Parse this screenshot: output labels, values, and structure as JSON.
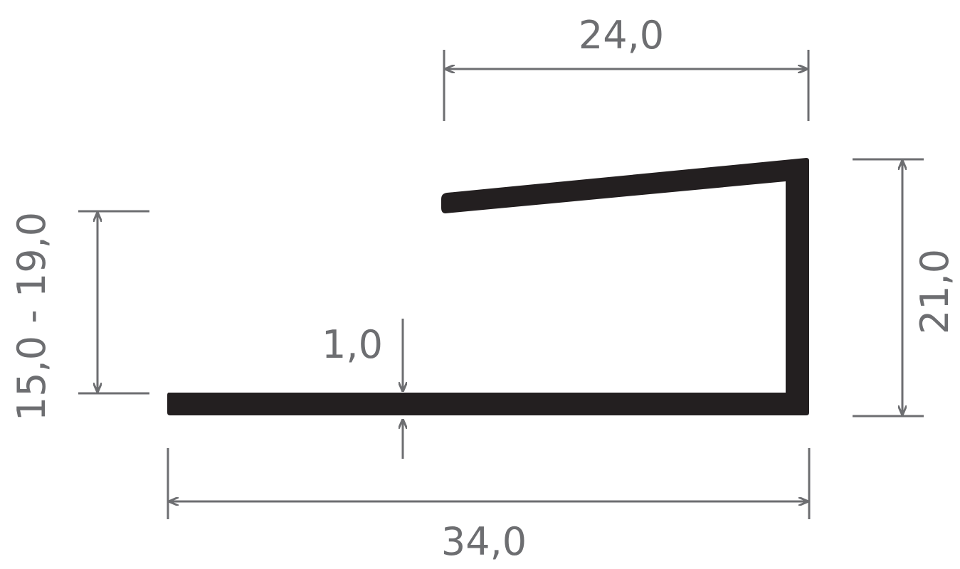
{
  "diagram": {
    "profile_color": "#231f20",
    "dimension_color": "#6d6e71",
    "dimensions": {
      "top_width": "24,0",
      "height": "21,0",
      "adjustable_height": "15,0 - 19,0",
      "thickness": "1,0",
      "total_width": "34,0"
    }
  }
}
